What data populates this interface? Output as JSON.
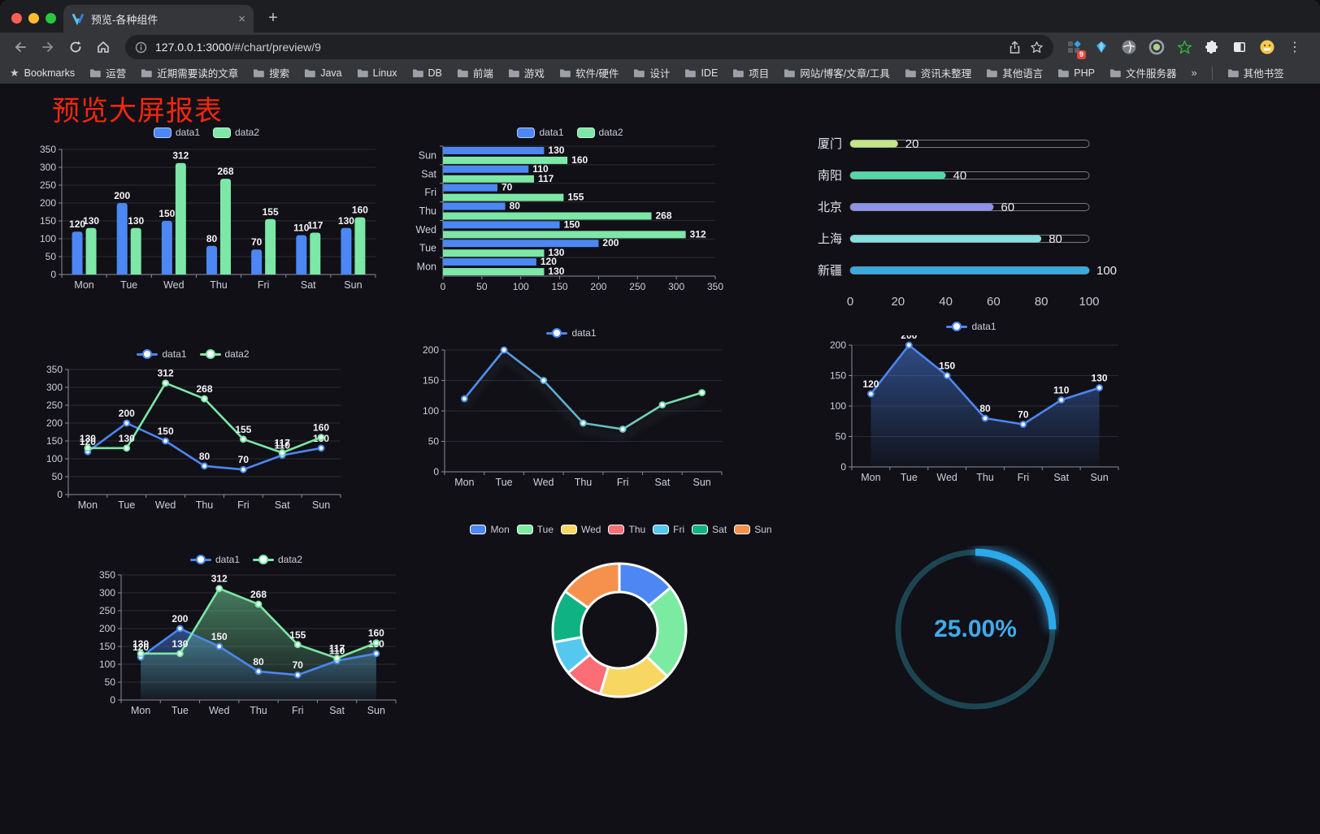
{
  "browser": {
    "tab": {
      "title": "预览-各种组件"
    },
    "url": {
      "host": "127.0.0.1:3000",
      "path": "/#/chart/preview/9"
    },
    "bookmarks_bar": {
      "star_label": "Bookmarks",
      "items": [
        "运营",
        "近期需要读的文章",
        "搜索",
        "Java",
        "Linux",
        "DB",
        "前端",
        "游戏",
        "软件/硬件",
        "设计",
        "IDE",
        "项目",
        "网站/博客/文章/工具",
        "资讯未整理",
        "其他语言",
        "PHP",
        "文件服务器"
      ],
      "overflow": "»",
      "other_bookmarks": "其他书签"
    },
    "extension_badge": "9"
  },
  "page": {
    "title": "预览大屏报表",
    "title_color": "#f4270f",
    "background": "#101016"
  },
  "colors": {
    "series_blue": "#4c87f3",
    "series_green": "#7ce7a6",
    "axis": "#8b8b99",
    "grid": "#2b2b33",
    "gauge_blue": "#2ba9e9",
    "gauge_track": "#1d4551"
  },
  "chart_data": [
    {
      "id": "grouped-bar",
      "type": "bar",
      "categories": [
        "Mon",
        "Tue",
        "Wed",
        "Thu",
        "Fri",
        "Sat",
        "Sun"
      ],
      "series": [
        {
          "name": "data1",
          "color": "#4c87f3",
          "values": [
            120,
            200,
            150,
            80,
            70,
            110,
            130
          ]
        },
        {
          "name": "data2",
          "color": "#7ce7a6",
          "values": [
            130,
            130,
            312,
            268,
            155,
            117,
            160
          ]
        }
      ],
      "ylim": [
        0,
        350
      ],
      "ystep": 50,
      "show_labels": true,
      "legend_position": "top"
    },
    {
      "id": "horizontal-bar",
      "type": "bar",
      "orientation": "horizontal",
      "categories_top_to_bottom": [
        "Sun",
        "Sat",
        "Fri",
        "Thu",
        "Wed",
        "Tue",
        "Mon"
      ],
      "series": [
        {
          "name": "data1",
          "color": "#4c87f3",
          "values": [
            130,
            110,
            70,
            80,
            150,
            200,
            120
          ]
        },
        {
          "name": "data2",
          "color": "#7ce7a6",
          "values": [
            160,
            117,
            155,
            268,
            312,
            130,
            130
          ]
        }
      ],
      "xlim": [
        0,
        350
      ],
      "xstep": 50,
      "show_labels": true,
      "legend_position": "top"
    },
    {
      "id": "progress-bars",
      "type": "bar",
      "orientation": "horizontal",
      "items": [
        {
          "label": "厦门",
          "value": 20,
          "color": "#c3e687"
        },
        {
          "label": "南阳",
          "value": 40,
          "color": "#55d7a5"
        },
        {
          "label": "北京",
          "value": 60,
          "color": "#8d93e8"
        },
        {
          "label": "上海",
          "value": 80,
          "color": "#86dee0"
        },
        {
          "label": "新疆",
          "value": 100,
          "color": "#3aa9dd"
        }
      ],
      "xlim": [
        0,
        100
      ],
      "xticks": [
        0,
        20,
        40,
        60,
        80,
        100
      ]
    },
    {
      "id": "multi-line",
      "type": "line",
      "categories": [
        "Mon",
        "Tue",
        "Wed",
        "Thu",
        "Fri",
        "Sat",
        "Sun"
      ],
      "series": [
        {
          "name": "data1",
          "color": "#4c87f3",
          "values": [
            120,
            200,
            150,
            80,
            70,
            110,
            130
          ]
        },
        {
          "name": "data2",
          "color": "#7ce7a6",
          "values": [
            130,
            130,
            312,
            268,
            155,
            117,
            160
          ]
        }
      ],
      "ylim": [
        0,
        350
      ],
      "ystep": 50,
      "show_labels": true,
      "legend_position": "top"
    },
    {
      "id": "gradient-line",
      "type": "line",
      "categories": [
        "Mon",
        "Tue",
        "Wed",
        "Thu",
        "Fri",
        "Sat",
        "Sun"
      ],
      "series": [
        {
          "name": "data1",
          "gradient": [
            "#4c87f3",
            "#7ce7a6"
          ],
          "color": "#4c87f3",
          "values": [
            120,
            200,
            150,
            80,
            70,
            110,
            130
          ]
        }
      ],
      "ylim": [
        0,
        200
      ],
      "ystep": 50,
      "show_labels": false,
      "legend_position": "top"
    },
    {
      "id": "area-line",
      "type": "area",
      "categories": [
        "Mon",
        "Tue",
        "Wed",
        "Thu",
        "Fri",
        "Sat",
        "Sun"
      ],
      "series": [
        {
          "name": "data1",
          "color": "#4c87f3",
          "area": true,
          "values": [
            120,
            200,
            150,
            80,
            70,
            110,
            130
          ]
        }
      ],
      "ylim": [
        0,
        200
      ],
      "ystep": 50,
      "show_labels": true,
      "legend_position": "top"
    },
    {
      "id": "two-series-area",
      "type": "area",
      "categories": [
        "Mon",
        "Tue",
        "Wed",
        "Thu",
        "Fri",
        "Sat",
        "Sun"
      ],
      "series": [
        {
          "name": "data1",
          "color": "#4c87f3",
          "area": true,
          "values": [
            120,
            200,
            150,
            80,
            70,
            110,
            130
          ]
        },
        {
          "name": "data2",
          "color": "#7ce7a6",
          "area": true,
          "values": [
            130,
            130,
            312,
            268,
            155,
            117,
            160
          ]
        }
      ],
      "ylim": [
        0,
        350
      ],
      "ystep": 50,
      "show_labels": true,
      "legend_position": "top"
    },
    {
      "id": "donut",
      "type": "pie",
      "categories": [
        "Mon",
        "Tue",
        "Wed",
        "Thu",
        "Fri",
        "Sat",
        "Sun"
      ],
      "values": [
        120,
        200,
        150,
        80,
        70,
        110,
        130
      ],
      "colors": [
        "#4c87f3",
        "#7ceba2",
        "#f7d662",
        "#fc6e75",
        "#55c8f0",
        "#0fb283",
        "#f5914d"
      ],
      "inner_radius_ratio": 0.57,
      "legend_position": "top"
    },
    {
      "id": "gauge",
      "type": "gauge",
      "value": 25,
      "display": "25.00%",
      "color": "#2ba9e9",
      "track_color": "#1d4551"
    }
  ]
}
